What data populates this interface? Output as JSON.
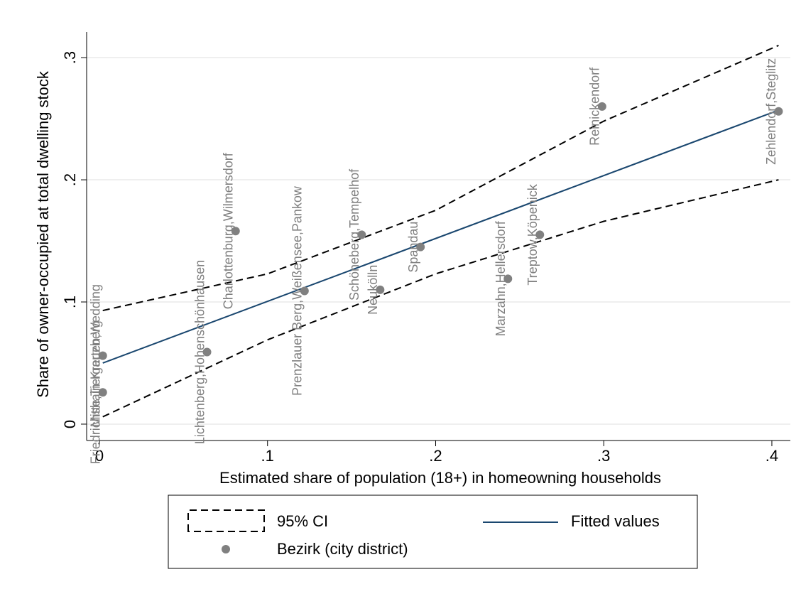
{
  "chart_data": {
    "type": "scatter-fit",
    "x_label": "Estimated share of population (18+) in homeowning households",
    "y_label": "Share of owner-occupied at total dwelling stock",
    "xlim": [
      -0.0076,
      0.411
    ],
    "ylim": [
      -0.0134,
      0.321
    ],
    "xticks": [
      0,
      {
        "value": 0.1,
        "label": ".1"
      },
      {
        "value": 0.2,
        "label": ".2"
      },
      {
        "value": 0.3,
        "label": ".3"
      },
      {
        "value": 0.4,
        "label": ".4"
      }
    ],
    "yticks": [
      0,
      {
        "value": 0.1,
        "label": ".1"
      },
      {
        "value": 0.2,
        "label": ".2"
      },
      {
        "value": 0.3,
        "label": ".3"
      }
    ],
    "grid": true,
    "ci": {
      "name": "95% CI",
      "color": "#000000",
      "x": [
        0.002,
        0.1,
        0.2,
        0.3,
        0.404
      ],
      "upper": [
        0.093,
        0.123,
        0.175,
        0.248,
        0.31
      ],
      "lower": [
        0.006,
        0.069,
        0.123,
        0.166,
        0.2
      ]
    },
    "fit": {
      "name": "Fitted values",
      "color": "#1a476f",
      "x": [
        0.002,
        0.404
      ],
      "values": [
        0.05,
        0.257
      ]
    },
    "points": {
      "name": "Bezirk (city district)",
      "color": "#808080",
      "labels": [
        "Friedrichshain-Kreuzberg",
        "Mitte,Tiergarten,Wedding",
        "Lichtenberg,Hohenschönhausen",
        "Charlottenburg,Wilmersdorf",
        "Prenzlauer Berg,Weißensee,Pankow",
        "Schöneberg,Tempelhof",
        "Neukölln",
        "Spandau",
        "Marzahn,Hellersdorf",
        "Treptow,Köpenick",
        "Reinickendorf",
        "Zehlendorf,Steglitz"
      ],
      "x": [
        0.002,
        0.002,
        0.064,
        0.081,
        0.122,
        0.156,
        0.167,
        0.191,
        0.243,
        0.262,
        0.299,
        0.404
      ],
      "values": [
        0.026,
        0.056,
        0.059,
        0.158,
        0.109,
        0.155,
        0.11,
        0.145,
        0.119,
        0.155,
        0.26,
        0.256
      ]
    }
  }
}
